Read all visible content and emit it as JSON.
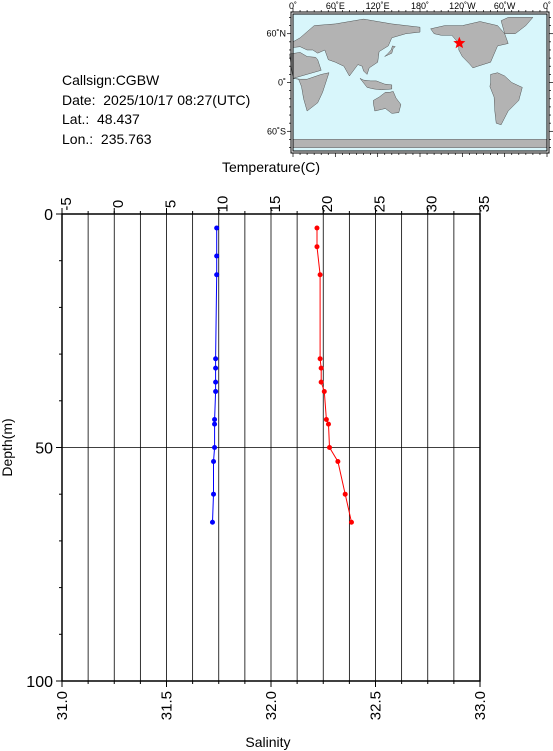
{
  "info": {
    "callsign": "Callsign:CGBW",
    "date": "Date:  2025/10/17 08:27(UTC)",
    "lat": "Lat.:  48.437",
    "lon": "Lon.:  235.763"
  },
  "map": {
    "lon_labels": [
      "0˚",
      "60˚E",
      "120˚E",
      "180˚",
      "120˚W",
      "60˚W",
      "0˚"
    ],
    "lat_labels": [
      "60˚N",
      "0˚",
      "60˚S"
    ],
    "station": {
      "lat": 48.437,
      "lon": 235.763
    },
    "ocean_color": "#d8f6fb",
    "land_color": "#b3b3b3",
    "marker_color": "#ff0000",
    "marker_icon": "star-icon"
  },
  "chart_data": {
    "type": "line",
    "ylabel": "Depth(m)",
    "ylim": [
      0,
      100
    ],
    "y_inverted": true,
    "yticks": [
      0,
      50,
      100
    ],
    "top_axis": {
      "label": "Temperature(C)",
      "range": [
        -5,
        35
      ],
      "ticks": [
        -5,
        0,
        5,
        10,
        15,
        20,
        25,
        30,
        35
      ]
    },
    "bottom_axis": {
      "label": "Salinity",
      "range": [
        31.0,
        33.0
      ],
      "ticks": [
        "31.0",
        "31.5",
        "32.0",
        "32.5",
        "33.0"
      ]
    },
    "grid": true,
    "series": [
      {
        "axis": "salinity",
        "color": "#0000ff",
        "points": [
          {
            "x": 31.74,
            "y": 3
          },
          {
            "x": 31.74,
            "y": 9
          },
          {
            "x": 31.74,
            "y": 13
          },
          {
            "x": 31.735,
            "y": 31
          },
          {
            "x": 31.735,
            "y": 33
          },
          {
            "x": 31.735,
            "y": 36
          },
          {
            "x": 31.735,
            "y": 38
          },
          {
            "x": 31.73,
            "y": 44
          },
          {
            "x": 31.73,
            "y": 45
          },
          {
            "x": 31.73,
            "y": 50
          },
          {
            "x": 31.725,
            "y": 53
          },
          {
            "x": 31.725,
            "y": 60
          },
          {
            "x": 31.72,
            "y": 66
          }
        ]
      },
      {
        "axis": "temperature",
        "color": "#ff0000",
        "points": [
          {
            "x": 19.4,
            "y": 3
          },
          {
            "x": 19.4,
            "y": 7
          },
          {
            "x": 19.7,
            "y": 13
          },
          {
            "x": 19.7,
            "y": 31
          },
          {
            "x": 19.8,
            "y": 33
          },
          {
            "x": 19.8,
            "y": 36
          },
          {
            "x": 20.1,
            "y": 38
          },
          {
            "x": 20.3,
            "y": 44
          },
          {
            "x": 20.5,
            "y": 45
          },
          {
            "x": 20.6,
            "y": 50
          },
          {
            "x": 21.4,
            "y": 53
          },
          {
            "x": 22.1,
            "y": 60
          },
          {
            "x": 22.7,
            "y": 66
          }
        ]
      }
    ]
  }
}
